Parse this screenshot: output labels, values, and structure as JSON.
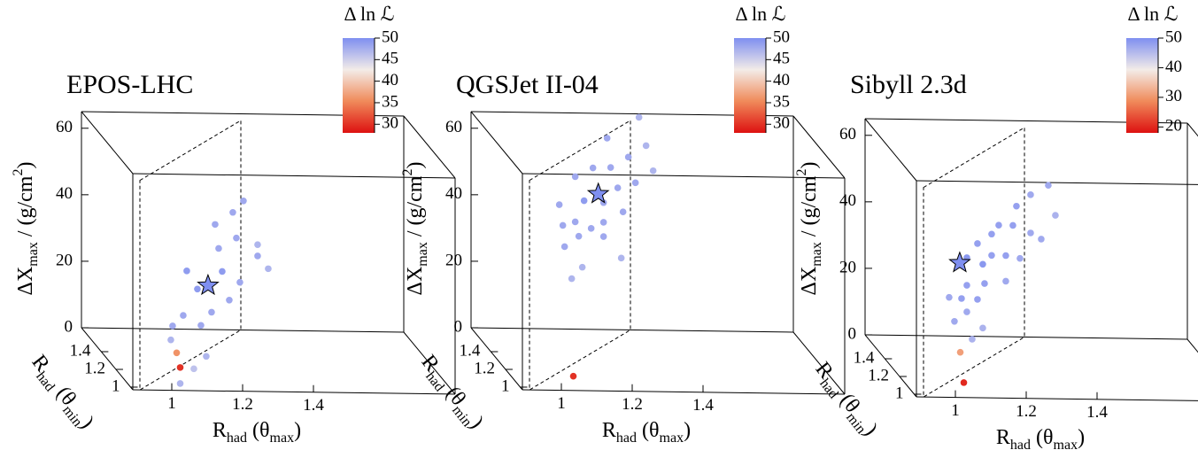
{
  "chart_data": [
    {
      "type": "scatter3d",
      "title": "EPOS-LHC",
      "colorbar_label": "Δ ln ℒ",
      "xlabel": [
        "R",
        "had",
        " (θ",
        "max",
        ")"
      ],
      "ylabel": [
        "R",
        "had",
        " (θ",
        "min",
        ")"
      ],
      "zlabel": [
        "ΔX",
        "max",
        " / (g/cm",
        "2",
        ")"
      ],
      "xlim": [
        0.89,
        1.8
      ],
      "ylim": [
        0.97,
        1.67
      ],
      "zlim": [
        0,
        65
      ],
      "xticks": [
        1,
        1.2,
        1.4
      ],
      "yticks": [
        1,
        1.2,
        1.4
      ],
      "zticks": [
        0,
        20,
        40,
        60
      ],
      "clim": [
        28,
        50
      ],
      "cticks": [
        30,
        35,
        40,
        45,
        50
      ],
      "colormap": [
        "#dd1111",
        "#f08a5a",
        "#f3ece8",
        "#7f8ff0"
      ],
      "points": {
        "x": [
          1.25,
          1.22,
          1.17,
          1.18,
          1.23,
          1.29,
          1.32,
          1.29,
          1.19,
          1.24,
          1.21,
          1.16,
          1.09,
          1.12,
          1.08,
          1.13,
          1.05,
          1.045,
          1.145,
          1.11,
          1.02,
          1.03,
          1.03
        ],
        "y": [
          1.2,
          1.2,
          1.2,
          1.2,
          1.2,
          1.2,
          1.2,
          1.2,
          1.2,
          1.2,
          1.2,
          1.2,
          1.2,
          1.2,
          1.2,
          1.2,
          1.2,
          1.2,
          1.2,
          1.2,
          1.0,
          1.0,
          1.0
        ],
        "z": [
          51.2,
          47.7,
          44,
          36.8,
          40,
          38.1,
          30.9,
          34.7,
          29.9,
          26.7,
          21.3,
          17.6,
          29.9,
          24.5,
          16.5,
          13.6,
          13.3,
          9.1,
          4.3,
          0.5,
          10.5,
          6.1,
          1.3
        ],
        "c": [
          48,
          48,
          48,
          48,
          48,
          47,
          47,
          48,
          49,
          48,
          48,
          48,
          49,
          49,
          48,
          48,
          48,
          47,
          47,
          46,
          36,
          30,
          47
        ]
      },
      "best_fit": {
        "x": 1.15,
        "y": 1.2,
        "z": 25.6,
        "c": 50
      }
    },
    {
      "type": "scatter3d",
      "title": "QGSJet II-04",
      "colorbar_label": "Δ ln ℒ",
      "xlabel": [
        "R",
        "had",
        " (θ",
        "max",
        ")"
      ],
      "ylabel": [
        "R",
        "had",
        " (θ",
        "min",
        ")"
      ],
      "zlabel": [
        "ΔX",
        "max",
        " / (g/cm",
        "2",
        ")"
      ],
      "xlim": [
        0.89,
        1.8
      ],
      "ylim": [
        0.97,
        1.67
      ],
      "zlim": [
        0,
        65
      ],
      "xticks": [
        1,
        1.2,
        1.4
      ],
      "yticks": [
        1,
        1.2,
        1.4
      ],
      "zticks": [
        0,
        20,
        40,
        60
      ],
      "clim": [
        28,
        50
      ],
      "cticks": [
        30,
        35,
        40,
        45,
        50
      ],
      "colormap": [
        "#dd1111",
        "#f08a5a",
        "#f3ece8",
        "#7f8ff0"
      ],
      "points": {
        "x": [
          1.36,
          1.27,
          1.38,
          1.33,
          1.23,
          1.28,
          1.4,
          1.18,
          1.35,
          1.3,
          1.205,
          1.26,
          1.135,
          1.315,
          1.18,
          1.26,
          1.145,
          1.225,
          1.19,
          1.26,
          1.15,
          1.31,
          1.2,
          1.17,
          1.04
        ],
        "y": [
          1.65,
          1.65,
          1.65,
          1.65,
          1.65,
          1.65,
          1.65,
          1.65,
          1.65,
          1.65,
          1.65,
          1.65,
          1.65,
          1.65,
          1.65,
          1.65,
          1.65,
          1.65,
          1.65,
          1.65,
          1.65,
          1.65,
          1.65,
          1.65,
          1.0
        ],
        "z": [
          64.5,
          58.1,
          56,
          52.5,
          49.1,
          49.3,
          48.5,
          46.4,
          44.8,
          43.2,
          39.2,
          38.7,
          37.9,
          36,
          32.8,
          32.8,
          31.7,
          30.9,
          28.5,
          28.5,
          25.3,
          22.1,
          19.2,
          15.7,
          3.5
        ],
        "c": [
          47,
          48,
          47,
          48,
          48,
          48,
          47,
          48,
          48,
          48,
          49,
          48,
          48,
          48,
          48,
          48,
          48,
          48,
          48,
          48,
          48,
          47,
          47,
          47,
          30
        ]
      },
      "best_fit": {
        "x": 1.245,
        "y": 1.65,
        "z": 41.3,
        "c": 50
      }
    },
    {
      "type": "scatter3d",
      "title": "Sibyll 2.3d",
      "colorbar_label": "Δ ln ℒ",
      "xlabel": [
        "R",
        "had",
        " (θ",
        "max",
        ")"
      ],
      "ylabel": [
        "R",
        "had",
        " (θ",
        "min",
        ")"
      ],
      "zlabel": [
        "ΔX",
        "max",
        " / (g/cm",
        "2",
        ")"
      ],
      "xlim": [
        0.89,
        1.8
      ],
      "ylim": [
        0.97,
        1.67
      ],
      "zlim": [
        0,
        65
      ],
      "xticks": [
        1,
        1.2,
        1.4
      ],
      "yticks": [
        1,
        1.2,
        1.4
      ],
      "zticks": [
        0,
        20,
        40,
        60
      ],
      "clim": [
        18,
        50
      ],
      "cticks": [
        20,
        30,
        40,
        50
      ],
      "colormap": [
        "#dd1111",
        "#f08a5a",
        "#f3ece8",
        "#7f8ff0"
      ],
      "points": {
        "x": [
          1.31,
          1.26,
          1.22,
          1.17,
          1.21,
          1.26,
          1.33,
          1.29,
          1.15,
          1.11,
          1.15,
          1.19,
          1.08,
          1.23,
          1.125,
          1.08,
          1.13,
          1.19,
          1.065,
          1.11,
          1.03,
          1.08,
          1.045,
          1.125,
          1.095,
          1.02,
          1.03
        ],
        "y": [
          1.2,
          1.2,
          1.2,
          1.2,
          1.2,
          1.2,
          1.2,
          1.2,
          1.2,
          1.2,
          1.2,
          1.2,
          1.2,
          1.2,
          1.2,
          1.2,
          1.2,
          1.2,
          1.2,
          1.2,
          1.2,
          1.2,
          1.2,
          1.2,
          1.2,
          1.0,
          1.0
        ],
        "z": [
          58.1,
          55.2,
          51.7,
          45.9,
          45.9,
          43.7,
          49.1,
          41.9,
          43.2,
          40.3,
          36.8,
          36.8,
          36,
          36,
          34.1,
          27.7,
          28.3,
          29.1,
          23.7,
          23.5,
          24,
          19.7,
          16.8,
          14.9,
          11.5,
          12.8,
          3.7
        ],
        "c": [
          47,
          47,
          48,
          48,
          48,
          47,
          46,
          47,
          48,
          48,
          48,
          48,
          49,
          47,
          49,
          48,
          48,
          47,
          48,
          48,
          47,
          47,
          47,
          46,
          46,
          31,
          20
        ]
      },
      "best_fit": {
        "x": 1.06,
        "y": 1.2,
        "z": 34.4,
        "c": 50
      }
    }
  ]
}
